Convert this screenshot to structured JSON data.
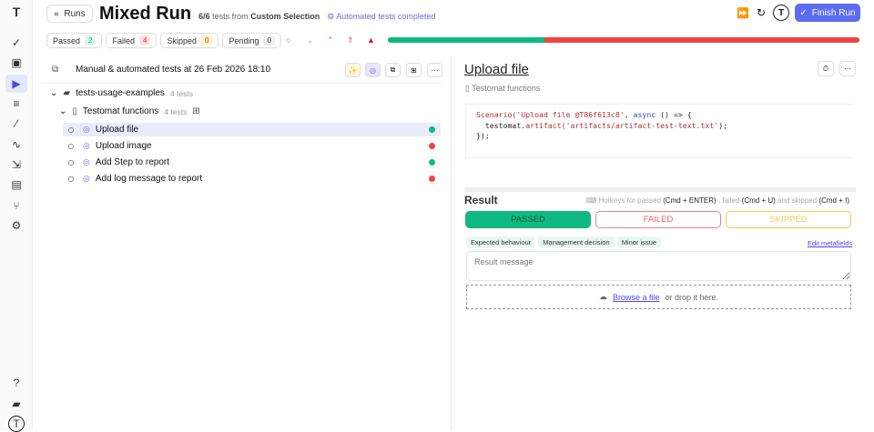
{
  "header": {
    "back_label": "Runs",
    "title": "Mixed Run",
    "count": "6/6",
    "sub_middle": "tests from",
    "selection": "Custom Selection",
    "status": "Automated tests completed",
    "finish_label": "Finish Run"
  },
  "filters": [
    {
      "label": "Passed",
      "count": "2",
      "color": "#10b981",
      "bg": "#d9f7ea"
    },
    {
      "label": "Failed",
      "count": "4",
      "color": "#dc2626",
      "bg": "#fde2e2"
    },
    {
      "label": "Skipped",
      "count": "0",
      "color": "#b45309",
      "bg": "#fdf0c8"
    },
    {
      "label": "Pending",
      "count": "0",
      "color": "#333",
      "bg": "#f0f0f0"
    }
  ],
  "progress": {
    "passed_fraction": 0.333,
    "failed_fraction": 0.667
  },
  "tree": {
    "run_title": "Manual & automated tests at 26 Feb 2026 18:10",
    "folder": "tests-usage-examples",
    "folder_count": "4 tests",
    "suite": "Testomat functions",
    "suite_count": "4 tests",
    "tests": [
      {
        "name": "Upload file",
        "status": "passed"
      },
      {
        "name": "Upload image",
        "status": "failed"
      },
      {
        "name": "Add Step to report",
        "status": "passed"
      },
      {
        "name": "Add log message to report",
        "status": "failed"
      }
    ]
  },
  "detail": {
    "title": "Upload file",
    "suite": "Testomat functions",
    "code": {
      "l1a": "Scenario(",
      "l1b": "'Upload file @T86f613c8'",
      ", ": ", ",
      "l1c": "async",
      "l1d": " () => {",
      "l2a": "  testomat.",
      "l2b": "artifact(",
      "l2c": "'artifacts/artifact-test-text.txt'",
      "l2d": ");",
      "l3": "});"
    },
    "result_label": "Result",
    "hotkeys": {
      "t1": "Hotkeys for passed",
      "k1": "(Cmd + ENTER)",
      "t2": ", failed",
      "k2": "(Cmd + U)",
      "t3": "and skipped",
      "k3": "(Cmd + I)"
    },
    "passed": "PASSED",
    "failed": "FAILED",
    "skipped": "SKIPPED",
    "tags": [
      "Expected behaviour",
      "Management decision",
      "Minor issue"
    ],
    "edit_metafields": "Edit metafields",
    "message_placeholder": "Result message",
    "browse": "Browse a file",
    "drop": "or drop it here."
  }
}
